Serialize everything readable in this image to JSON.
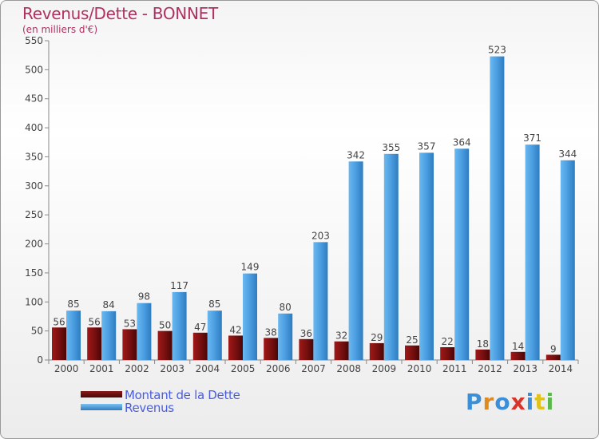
{
  "header": {
    "title": "Revenus/Dette - BONNET",
    "subtitle": "(en milliers d'€)"
  },
  "chart_data": {
    "type": "bar",
    "categories": [
      "2000",
      "2001",
      "2002",
      "2003",
      "2004",
      "2005",
      "2006",
      "2007",
      "2008",
      "2009",
      "2010",
      "2011",
      "2012",
      "2013",
      "2014"
    ],
    "series": [
      {
        "name": "Montant de la Dette",
        "color": "#7a1010",
        "values": [
          56,
          56,
          53,
          50,
          47,
          42,
          38,
          36,
          32,
          29,
          25,
          22,
          18,
          14,
          9
        ]
      },
      {
        "name": "Revenus",
        "color": "#4a9de0",
        "values": [
          85,
          84,
          98,
          117,
          85,
          149,
          80,
          203,
          342,
          355,
          357,
          364,
          523,
          371,
          344
        ]
      }
    ],
    "yticks": [
      0,
      50,
      100,
      150,
      200,
      250,
      300,
      350,
      400,
      450,
      500,
      550
    ],
    "ylim": [
      0,
      550
    ],
    "grid": false,
    "legend": "bottom-left"
  },
  "legend": {
    "items": [
      {
        "label": "Montant de la Dette",
        "color": "#6b0c0c"
      },
      {
        "label": "Revenus",
        "color": "#4a9de0"
      }
    ]
  },
  "logo": {
    "letters": [
      "P",
      "r",
      "o",
      "x",
      "i",
      "t",
      "i"
    ],
    "colors": [
      "#3a8fd8",
      "#e08a1e",
      "#3a8fd8",
      "#d8352a",
      "#3a8fd8",
      "#e0c21e",
      "#5bb84a"
    ]
  }
}
